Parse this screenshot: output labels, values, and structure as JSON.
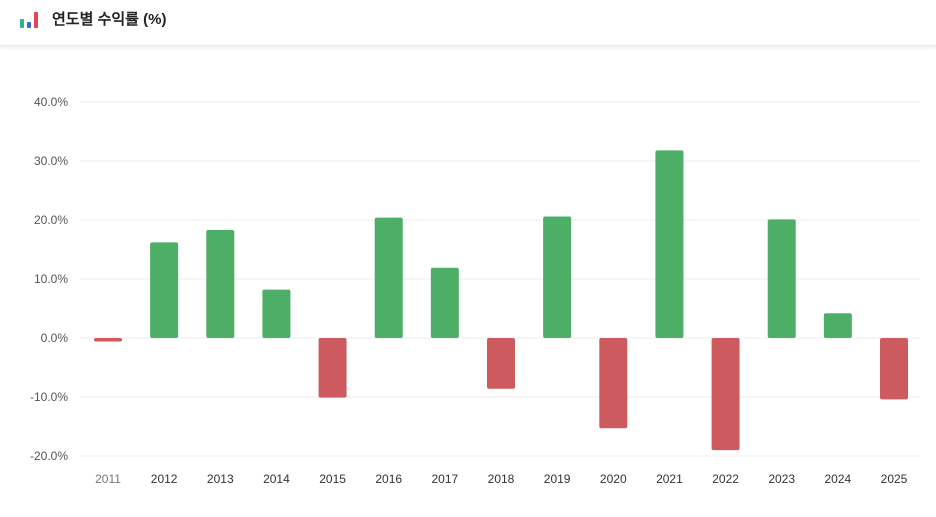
{
  "header": {
    "title": "연도별 수익률 (%)",
    "icon": "bar-chart-icon"
  },
  "colors": {
    "positive": "#4cae67",
    "negative": "#cc5a5e",
    "grid": "#ededed",
    "icon_bars": [
      "#2bb39a",
      "#2f6fd1",
      "#e8415a"
    ]
  },
  "chart_data": {
    "type": "bar",
    "title": "연도별 수익률 (%)",
    "xlabel": "",
    "ylabel": "",
    "categories": [
      "2011",
      "2012",
      "2013",
      "2014",
      "2015",
      "2016",
      "2017",
      "2018",
      "2019",
      "2020",
      "2021",
      "2022",
      "2023",
      "2024",
      "2025"
    ],
    "values": [
      -0.6,
      16.2,
      18.3,
      8.2,
      -10.1,
      20.4,
      11.9,
      -8.6,
      20.6,
      -15.3,
      31.8,
      -19.0,
      20.1,
      4.2,
      -10.4
    ],
    "ylim": [
      -20,
      40
    ],
    "yticks": [
      "40.0%",
      "30.0%",
      "20.0%",
      "10.0%",
      "0.0%",
      "-10.0%",
      "-20.0%"
    ],
    "ytick_values": [
      40,
      30,
      20,
      10,
      0,
      -10,
      -20
    ],
    "grid": true,
    "legend": "none"
  }
}
